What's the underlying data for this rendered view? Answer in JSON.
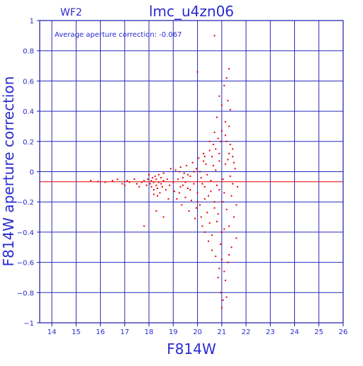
{
  "colors": {
    "axis": "#1a1aa8",
    "grid": "#2a2ab8",
    "text": "#2a2ad0",
    "points": "#e60000",
    "mean_line": "#e60000",
    "background": "#ffffff"
  },
  "chart_data": {
    "type": "scatter",
    "title": "lmc_u4zn06",
    "subtitle": "WF2",
    "annotation": "Average aperture correction: -0.067",
    "xlabel": "F814W",
    "ylabel": "F814W aperture correction",
    "xlim": [
      13.5,
      26
    ],
    "ylim": [
      -1,
      1
    ],
    "xticks": [
      14,
      15,
      16,
      17,
      18,
      19,
      20,
      21,
      22,
      23,
      24,
      25,
      26
    ],
    "yticks": [
      -1,
      -0.8,
      -0.6,
      -0.4,
      -0.2,
      0,
      0.2,
      0.4,
      0.6,
      0.8,
      1
    ],
    "xtick_labels": [
      "14",
      "15",
      "16",
      "17",
      "18",
      "19",
      "20",
      "21",
      "22",
      "23",
      "24",
      "25",
      "26"
    ],
    "ytick_labels": [
      "−1",
      "−0.8",
      "−0.6",
      "−0.4",
      "−0.2",
      "0",
      "0.2",
      "0.4",
      "0.6",
      "0.8",
      "1"
    ],
    "grid": true,
    "hlines": [
      0,
      -0.067
    ],
    "series": [
      {
        "points": [
          [
            15.6,
            -0.06
          ],
          [
            15.9,
            -0.065
          ],
          [
            16.2,
            -0.07
          ],
          [
            16.5,
            -0.06
          ],
          [
            16.7,
            -0.05
          ],
          [
            16.9,
            -0.08
          ],
          [
            17.0,
            -0.09
          ],
          [
            17.1,
            -0.06
          ],
          [
            17.2,
            -0.07
          ],
          [
            17.4,
            -0.05
          ],
          [
            17.5,
            -0.08
          ],
          [
            17.6,
            -0.1
          ],
          [
            17.7,
            -0.07
          ],
          [
            17.8,
            -0.06
          ],
          [
            17.9,
            -0.09
          ],
          [
            17.95,
            -0.05
          ],
          [
            18.0,
            -0.02
          ],
          [
            18.05,
            -0.08
          ],
          [
            18.1,
            -0.06
          ],
          [
            18.1,
            -0.1
          ],
          [
            18.15,
            -0.04
          ],
          [
            18.2,
            -0.12
          ],
          [
            18.2,
            -0.07
          ],
          [
            18.25,
            -0.03
          ],
          [
            18.3,
            -0.09
          ],
          [
            18.3,
            -0.05
          ],
          [
            18.35,
            -0.11
          ],
          [
            18.4,
            -0.07
          ],
          [
            18.4,
            -0.02
          ],
          [
            18.45,
            -0.14
          ],
          [
            18.5,
            -0.08
          ],
          [
            18.5,
            -0.04
          ],
          [
            18.55,
            -0.1
          ],
          [
            18.6,
            -0.06
          ],
          [
            18.2,
            -0.15
          ],
          [
            18.35,
            -0.16
          ],
          [
            18.6,
            -0.01
          ],
          [
            18.7,
            -0.12
          ],
          [
            18.75,
            -0.05
          ],
          [
            18.8,
            -0.18
          ],
          [
            18.85,
            -0.09
          ],
          [
            18.9,
            0.02
          ],
          [
            19.0,
            -0.07
          ],
          [
            19.05,
            -0.13
          ],
          [
            19.1,
            0.01
          ],
          [
            17.8,
            -0.36
          ],
          [
            18.3,
            -0.26
          ],
          [
            18.6,
            -0.3
          ],
          [
            19.2,
            -0.05
          ],
          [
            19.25,
            -0.14
          ],
          [
            19.3,
            0.03
          ],
          [
            19.35,
            -0.22
          ],
          [
            19.4,
            -0.09
          ],
          [
            19.45,
            -0.01
          ],
          [
            19.5,
            -0.17
          ],
          [
            19.55,
            0.04
          ],
          [
            19.6,
            -0.11
          ],
          [
            19.65,
            -0.26
          ],
          [
            19.7,
            -0.03
          ],
          [
            19.75,
            -0.19
          ],
          [
            19.8,
            0.06
          ],
          [
            19.85,
            -0.08
          ],
          [
            19.9,
            -0.31
          ],
          [
            19.95,
            0.02
          ],
          [
            20.0,
            -0.14
          ],
          [
            20.05,
            0.09
          ],
          [
            20.1,
            -0.22
          ],
          [
            20.15,
            -0.04
          ],
          [
            20.2,
            -0.36
          ],
          [
            20.25,
            0.12
          ],
          [
            20.3,
            -0.1
          ],
          [
            20.35,
            0.05
          ],
          [
            20.4,
            -0.27
          ],
          [
            20.45,
            -0.16
          ],
          [
            20.5,
            0.14
          ],
          [
            20.55,
            -0.06
          ],
          [
            20.6,
            -0.42
          ],
          [
            20.65,
            0.18
          ],
          [
            20.7,
            -0.2
          ],
          [
            20.75,
            0.01
          ],
          [
            20.8,
            -0.33
          ],
          [
            20.85,
            0.22
          ],
          [
            20.9,
            -0.12
          ],
          [
            20.95,
            -0.48
          ],
          [
            21.0,
            0.27
          ],
          [
            21.05,
            -0.05
          ],
          [
            21.1,
            -0.38
          ],
          [
            21.15,
            0.33
          ],
          [
            21.2,
            -0.25
          ],
          [
            21.25,
            0.08
          ],
          [
            21.3,
            -0.55
          ],
          [
            21.35,
            0.41
          ],
          [
            21.4,
            -0.16
          ],
          [
            21.45,
            0.15
          ],
          [
            21.5,
            -0.3
          ],
          [
            21.55,
            0.02
          ],
          [
            21.6,
            -0.44
          ],
          [
            21.65,
            -0.1
          ],
          [
            20.0,
            0.66
          ],
          [
            20.7,
            0.9
          ],
          [
            21.2,
            0.62
          ],
          [
            21.3,
            0.68
          ],
          [
            21.1,
            0.57
          ],
          [
            20.9,
            0.5
          ],
          [
            21.25,
            0.47
          ],
          [
            21.0,
            0.44
          ],
          [
            20.8,
            0.36
          ],
          [
            21.3,
            0.3
          ],
          [
            21.15,
            0.24
          ],
          [
            20.7,
            0.26
          ],
          [
            20.5,
            0.2
          ],
          [
            21.35,
            0.18
          ],
          [
            20.3,
            0.1
          ],
          [
            20.9,
            0.07
          ],
          [
            21.45,
            0.1
          ],
          [
            21.0,
            -0.58
          ],
          [
            20.9,
            -0.64
          ],
          [
            21.1,
            -0.66
          ],
          [
            21.15,
            -0.72
          ],
          [
            20.95,
            -0.8
          ],
          [
            21.05,
            -0.85
          ],
          [
            21.2,
            -0.83
          ],
          [
            21.0,
            -0.9
          ],
          [
            20.85,
            -0.7
          ],
          [
            21.25,
            -0.6
          ],
          [
            20.75,
            -0.56
          ],
          [
            20.6,
            -0.52
          ],
          [
            20.45,
            -0.46
          ],
          [
            20.3,
            -0.4
          ],
          [
            20.15,
            -0.3
          ],
          [
            19.95,
            -0.24
          ],
          [
            19.7,
            -0.12
          ],
          [
            19.5,
            -0.07
          ],
          [
            19.3,
            -0.1
          ],
          [
            19.15,
            -0.18
          ],
          [
            20.2,
            -0.08
          ],
          [
            20.4,
            -0.02
          ],
          [
            20.55,
            -0.13
          ],
          [
            20.65,
            0.04
          ],
          [
            20.8,
            -0.09
          ],
          [
            20.9,
            0.12
          ],
          [
            21.05,
            -0.2
          ],
          [
            21.2,
            0.2
          ],
          [
            21.35,
            -0.03
          ],
          [
            21.5,
            0.06
          ],
          [
            21.6,
            -0.22
          ],
          [
            20.1,
            0.0
          ],
          [
            20.3,
            -0.18
          ],
          [
            20.5,
            -0.34
          ],
          [
            20.7,
            -0.24
          ],
          [
            20.85,
            -0.28
          ],
          [
            21.0,
            -0.4
          ],
          [
            21.1,
            -0.14
          ],
          [
            21.3,
            -0.36
          ],
          [
            21.4,
            -0.5
          ],
          [
            20.0,
            -0.2
          ],
          [
            20.25,
            0.07
          ],
          [
            20.6,
            0.1
          ],
          [
            20.75,
            0.15
          ],
          [
            20.95,
            0.2
          ],
          [
            21.15,
            0.05
          ],
          [
            21.3,
            0.12
          ],
          [
            21.45,
            -0.08
          ],
          [
            19.6,
            -0.02
          ],
          [
            19.85,
            0.0
          ],
          [
            19.4,
            -0.04
          ],
          [
            19.25,
            0.0
          ]
        ]
      }
    ]
  }
}
